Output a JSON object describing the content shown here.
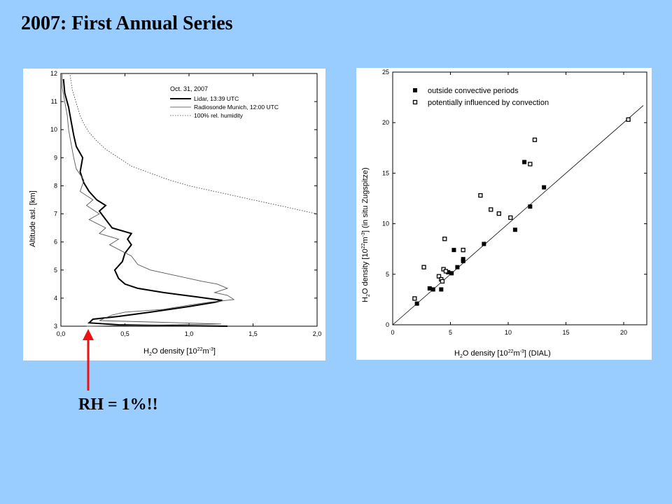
{
  "slide": {
    "title": "2007: First Annual Series",
    "annotation": "RH = 1%!!",
    "arrow_color": "#ee1111",
    "background": "#99ccff"
  },
  "chart_data": [
    {
      "type": "line",
      "xlabel_main": "H",
      "xlabel_sub": "2",
      "xlabel_rest": "O density [10",
      "xlabel_sup": "22",
      "xlabel_unit": "m",
      "xlabel_sup2": "-3",
      "xlabel_end": "]",
      "ylabel": "Altitude asl. [km]",
      "xlim": [
        0.0,
        2.0
      ],
      "ylim": [
        3,
        12
      ],
      "xticks": [
        "0,0",
        "0,5",
        "1,0",
        "1,5",
        "2,0"
      ],
      "xtick_values": [
        0.0,
        0.5,
        1.0,
        1.5,
        2.0
      ],
      "yticks": [
        "3",
        "4",
        "5",
        "6",
        "7",
        "8",
        "9",
        "10",
        "11",
        "12"
      ],
      "ytick_values": [
        3,
        4,
        5,
        6,
        7,
        8,
        9,
        10,
        11,
        12
      ],
      "legend": {
        "date": "Oct. 31, 2007",
        "entries": [
          "Lidar, 13:39 UTC",
          "Radiosonde Munich, 12:00 UTC",
          "100% rel. humidity"
        ],
        "placement": "top-right"
      },
      "series": [
        {
          "name": "Lidar, 13:39 UTC",
          "style": "thick",
          "points": [
            [
              1.3,
              3.0
            ],
            [
              0.9,
              3.02
            ],
            [
              0.45,
              3.05
            ],
            [
              0.22,
              3.12
            ],
            [
              0.25,
              3.25
            ],
            [
              0.45,
              3.35
            ],
            [
              0.7,
              3.5
            ],
            [
              1.0,
              3.7
            ],
            [
              1.2,
              3.85
            ],
            [
              1.26,
              3.92
            ],
            [
              1.05,
              4.05
            ],
            [
              0.8,
              4.2
            ],
            [
              0.6,
              4.35
            ],
            [
              0.5,
              4.5
            ],
            [
              0.45,
              4.7
            ],
            [
              0.42,
              5.0
            ],
            [
              0.48,
              5.3
            ],
            [
              0.5,
              5.6
            ],
            [
              0.55,
              5.9
            ],
            [
              0.52,
              6.1
            ],
            [
              0.55,
              6.3
            ],
            [
              0.4,
              6.5
            ],
            [
              0.35,
              6.8
            ],
            [
              0.3,
              7.1
            ],
            [
              0.35,
              7.3
            ],
            [
              0.28,
              7.5
            ],
            [
              0.22,
              7.8
            ],
            [
              0.18,
              8.1
            ],
            [
              0.15,
              8.5
            ],
            [
              0.17,
              9.0
            ],
            [
              0.12,
              9.4
            ],
            [
              0.1,
              9.8
            ],
            [
              0.08,
              10.3
            ],
            [
              0.06,
              10.8
            ],
            [
              0.03,
              11.3
            ],
            [
              0.02,
              11.8
            ]
          ]
        },
        {
          "name": "Radiosonde Munich, 12:00 UTC",
          "style": "thin",
          "points": [
            [
              0.2,
              3.0
            ],
            [
              1.25,
              3.08
            ],
            [
              0.7,
              3.15
            ],
            [
              0.3,
              3.2
            ],
            [
              0.4,
              3.4
            ],
            [
              0.5,
              3.5
            ],
            [
              0.8,
              3.6
            ],
            [
              1.0,
              3.75
            ],
            [
              1.15,
              3.85
            ],
            [
              1.35,
              3.95
            ],
            [
              1.3,
              4.1
            ],
            [
              1.2,
              4.2
            ],
            [
              1.3,
              4.35
            ],
            [
              1.22,
              4.5
            ],
            [
              1.1,
              4.6
            ],
            [
              0.9,
              4.8
            ],
            [
              0.7,
              5.0
            ],
            [
              0.6,
              5.2
            ],
            [
              0.55,
              5.5
            ],
            [
              0.38,
              5.9
            ],
            [
              0.45,
              6.1
            ],
            [
              0.3,
              6.3
            ],
            [
              0.35,
              6.5
            ],
            [
              0.22,
              6.8
            ],
            [
              0.3,
              7.0
            ],
            [
              0.2,
              7.3
            ],
            [
              0.25,
              7.5
            ],
            [
              0.15,
              7.8
            ],
            [
              0.18,
              8.2
            ],
            [
              0.12,
              8.6
            ],
            [
              0.1,
              9.0
            ],
            [
              0.08,
              9.5
            ],
            [
              0.06,
              10.0
            ],
            [
              0.05,
              10.5
            ],
            [
              0.03,
              11.0
            ],
            [
              0.01,
              11.5
            ],
            [
              0.01,
              12.0
            ]
          ]
        },
        {
          "name": "100% rel. humidity",
          "style": "dotted",
          "points": [
            [
              2.0,
              7.0
            ],
            [
              1.8,
              7.2
            ],
            [
              1.6,
              7.4
            ],
            [
              1.4,
              7.6
            ],
            [
              1.2,
              7.8
            ],
            [
              1.0,
              8.0
            ],
            [
              0.85,
              8.2
            ],
            [
              0.7,
              8.45
            ],
            [
              0.55,
              8.7
            ],
            [
              0.45,
              9.0
            ],
            [
              0.35,
              9.3
            ],
            [
              0.28,
              9.6
            ],
            [
              0.22,
              9.9
            ],
            [
              0.18,
              10.2
            ],
            [
              0.15,
              10.5
            ],
            [
              0.13,
              10.8
            ],
            [
              0.11,
              11.1
            ],
            [
              0.09,
              11.4
            ],
            [
              0.08,
              11.7
            ],
            [
              0.07,
              12.0
            ]
          ]
        }
      ]
    },
    {
      "type": "scatter",
      "xlabel_main": "H",
      "xlabel_sub": "2",
      "xlabel_rest": "O density [10",
      "xlabel_sup": "22",
      "xlabel_unit": "m",
      "xlabel_sup2": "-3",
      "xlabel_end": "] (DIAL)",
      "ylabel_main": "H",
      "ylabel_sub": "2",
      "ylabel_rest": "O density [10",
      "ylabel_sup": "22",
      "ylabel_unit": "m",
      "ylabel_sup2": "-3",
      "ylabel_end": "] (in situ Zugspitze)",
      "xlim": [
        0,
        22
      ],
      "ylim": [
        0,
        25
      ],
      "xticks": [
        "0",
        "5",
        "10",
        "15",
        "20"
      ],
      "xtick_values": [
        0,
        5,
        10,
        15,
        20
      ],
      "yticks": [
        "0",
        "5",
        "10",
        "15",
        "20",
        "25"
      ],
      "ytick_values": [
        0,
        5,
        10,
        15,
        20,
        25
      ],
      "legend": {
        "placement": "top-left"
      },
      "reference_line": [
        [
          0,
          0
        ],
        [
          21.7,
          21.7
        ]
      ],
      "series": [
        {
          "name": "outside convective periods",
          "marker": "filled",
          "points": [
            [
              2.1,
              2.1
            ],
            [
              3.2,
              3.6
            ],
            [
              3.5,
              3.5
            ],
            [
              4.2,
              3.5
            ],
            [
              4.8,
              5.2
            ],
            [
              5.1,
              5.1
            ],
            [
              5.3,
              7.4
            ],
            [
              5.6,
              5.7
            ],
            [
              6.1,
              6.5
            ],
            [
              6.1,
              6.3
            ],
            [
              7.9,
              8.0
            ],
            [
              10.6,
              9.4
            ],
            [
              11.4,
              16.1
            ],
            [
              11.9,
              11.7
            ],
            [
              13.1,
              13.6
            ]
          ]
        },
        {
          "name": "potentially influenced by convection",
          "marker": "open",
          "points": [
            [
              1.9,
              2.6
            ],
            [
              2.7,
              5.7
            ],
            [
              4.0,
              4.8
            ],
            [
              4.2,
              4.5
            ],
            [
              4.3,
              4.3
            ],
            [
              4.4,
              5.5
            ],
            [
              4.5,
              8.5
            ],
            [
              4.6,
              5.3
            ],
            [
              6.1,
              7.4
            ],
            [
              7.6,
              12.8
            ],
            [
              8.5,
              11.4
            ],
            [
              9.2,
              11.0
            ],
            [
              10.2,
              10.6
            ],
            [
              11.9,
              15.9
            ],
            [
              12.3,
              18.3
            ],
            [
              20.4,
              20.3
            ]
          ]
        }
      ]
    }
  ]
}
